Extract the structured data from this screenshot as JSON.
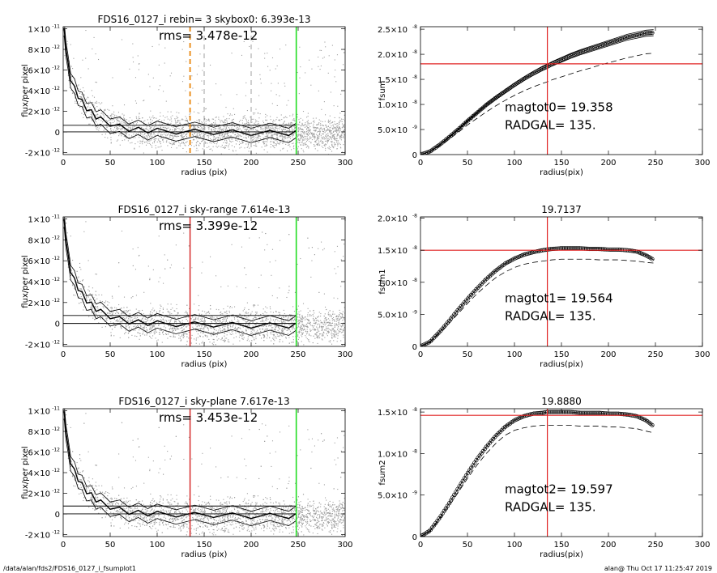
{
  "footer": {
    "left": "/data/alan/fds2/FDS16_0127_i_fsumplot1",
    "right": "alan@  Thu Oct 17 11:25:47 2019"
  },
  "colors": {
    "scatter": "#9e9e9e",
    "profile": "#000000",
    "radgal_line_top": "#e8870e",
    "radgal_line": "#d42020",
    "edge_line": "#22dd22",
    "mag_line": "#e02020"
  },
  "chart_data": [
    {
      "id": "left1",
      "type": "scatter",
      "title": "FDS16_0127_i rebin= 3    skybox0:  6.393e-13",
      "rms_label": "rms= 3.478e-12",
      "xlabel": "radius (pix)",
      "ylabel": "flux/per pixel",
      "xlim": [
        0,
        300
      ],
      "ylim": [
        -2.2e-12,
        1.02e-11
      ],
      "xticks": [
        0,
        50,
        100,
        150,
        200,
        250,
        300
      ],
      "xticklabels": [
        "0",
        "50",
        "100",
        "150",
        "200",
        "250",
        "300"
      ],
      "yticks": [
        -2e-12,
        0,
        2e-12,
        4e-12,
        6e-12,
        8e-12,
        1e-11
      ],
      "yticklabels": [
        "-2×10",
        "0",
        "2×10",
        "4×10",
        "6×10",
        "8×10",
        "1×10"
      ],
      "ytickexp": [
        "-12",
        "",
        "-12",
        "-12",
        "-12",
        "-12",
        "-11"
      ],
      "profile_radius": [
        1,
        3,
        5,
        8,
        12,
        16,
        20,
        25,
        30,
        35,
        40,
        50,
        60,
        70,
        80,
        90,
        100,
        120,
        140,
        160,
        180,
        200,
        220,
        240,
        248
      ],
      "profile_flux": [
        9.8e-12,
        8.2e-12,
        6.6e-12,
        5.2e-12,
        4.2e-12,
        3.5e-12,
        2.9e-12,
        2.3e-12,
        1.9e-12,
        1.5e-12,
        1.2e-12,
        8e-13,
        5e-13,
        3e-13,
        2e-13,
        1.5e-13,
        1e-13,
        5e-14,
        0,
        0,
        -5e-14,
        -1e-13,
        -1e-13,
        -1e-13,
        -1e-13
      ],
      "profile_band": 7e-13,
      "hlines": [
        6.393e-13,
        0
      ],
      "radgal_line": {
        "x": 135,
        "style": "dashed",
        "color": "#e8870e"
      },
      "extra_dashed": [
        150,
        200
      ],
      "edge_line": 248
    },
    {
      "id": "right1",
      "type": "line",
      "title": "",
      "xlabel": "radius(pix)",
      "ylabel": "fsum",
      "xlim": [
        0,
        300
      ],
      "ylim": [
        0,
        2.55e-08
      ],
      "xticks": [
        0,
        50,
        100,
        150,
        200,
        250,
        300
      ],
      "xticklabels": [
        "0",
        "50",
        "100",
        "150",
        "200",
        "250",
        "300"
      ],
      "yticks": [
        0,
        5e-09,
        1e-08,
        1.5e-08,
        2e-08,
        2.5e-08
      ],
      "yticklabels": [
        "0",
        "5.0×10",
        "1.0×10",
        "1.5×10",
        "2.0×10",
        "2.5×10"
      ],
      "ytickexp": [
        "",
        "-9",
        "-8",
        "-8",
        "-8",
        "-8"
      ],
      "curve_radius": [
        0,
        10,
        20,
        30,
        40,
        50,
        60,
        70,
        80,
        90,
        100,
        110,
        120,
        130,
        135,
        140,
        150,
        160,
        170,
        180,
        190,
        200,
        210,
        220,
        230,
        240,
        248
      ],
      "curve_fsum": [
        0,
        6e-10,
        1.9e-09,
        3.4e-09,
        5e-09,
        6.7e-09,
        8.3e-09,
        9.9e-09,
        1.13e-08,
        1.26e-08,
        1.39e-08,
        1.51e-08,
        1.62e-08,
        1.72e-08,
        1.76e-08,
        1.81e-08,
        1.89e-08,
        1.97e-08,
        2.04e-08,
        2.1e-08,
        2.16e-08,
        2.22e-08,
        2.28e-08,
        2.34e-08,
        2.38e-08,
        2.42e-08,
        2.43e-08
      ],
      "band_frac": 0.025,
      "dashed_fsum": [
        0,
        5.5e-10,
        1.7e-09,
        3e-09,
        4.4e-09,
        5.9e-09,
        7.2e-09,
        8.5e-09,
        9.7e-09,
        1.08e-08,
        1.18e-08,
        1.27e-08,
        1.35e-08,
        1.42e-08,
        1.45e-08,
        1.49e-08,
        1.55e-08,
        1.61e-08,
        1.67e-08,
        1.72e-08,
        1.78e-08,
        1.83e-08,
        1.88e-08,
        1.93e-08,
        1.97e-08,
        2.01e-08,
        2.02e-08
      ],
      "hline": 1.81e-08,
      "vline": 135,
      "label_mag": "magtot0=  19.358",
      "label_radgal": "RADGAL=    135."
    },
    {
      "id": "left2",
      "type": "scatter",
      "title": "FDS16_0127_i sky-range  7.614e-13",
      "rms_label": "rms= 3.399e-12",
      "xlabel": "radius (pix)",
      "ylabel": "flux/per pixel",
      "xlim": [
        0,
        300
      ],
      "ylim": [
        -2.2e-12,
        1.02e-11
      ],
      "xticks": [
        0,
        50,
        100,
        150,
        200,
        250,
        300
      ],
      "xticklabels": [
        "0",
        "50",
        "100",
        "150",
        "200",
        "250",
        "300"
      ],
      "yticks": [
        -2e-12,
        0,
        2e-12,
        4e-12,
        6e-12,
        8e-12,
        1e-11
      ],
      "yticklabels": [
        "-2×10",
        "0",
        "2×10",
        "4×10",
        "6×10",
        "8×10",
        "1×10"
      ],
      "ytickexp": [
        "-12",
        "",
        "-12",
        "-12",
        "-12",
        "-12",
        "-11"
      ],
      "profile_radius": [
        1,
        3,
        5,
        8,
        12,
        16,
        20,
        25,
        30,
        35,
        40,
        50,
        60,
        70,
        80,
        90,
        100,
        120,
        140,
        160,
        180,
        200,
        220,
        240,
        248
      ],
      "profile_flux": [
        9.7e-12,
        8.1e-12,
        6.5e-12,
        5.1e-12,
        4.1e-12,
        3.4e-12,
        2.8e-12,
        2.2e-12,
        1.8e-12,
        1.4e-12,
        1.1e-12,
        7e-13,
        4e-13,
        2e-13,
        1e-13,
        5e-14,
        0,
        -5e-14,
        -1e-13,
        -1e-13,
        -1.5e-13,
        -2e-13,
        -2e-13,
        -2e-13,
        -2e-13
      ],
      "profile_band": 7e-13,
      "hlines": [
        7.614e-13,
        0
      ],
      "radgal_line": {
        "x": 135,
        "style": "solid",
        "color": "#d42020"
      },
      "extra_dashed": [],
      "edge_line": 248
    },
    {
      "id": "right2",
      "type": "line",
      "title": "19.7137",
      "xlabel": "radius(pix)",
      "ylabel": "fsum1",
      "xlim": [
        0,
        300
      ],
      "ylim": [
        0,
        2.02e-08
      ],
      "xticks": [
        0,
        50,
        100,
        150,
        200,
        250,
        300
      ],
      "xticklabels": [
        "0",
        "50",
        "100",
        "150",
        "200",
        "250",
        "300"
      ],
      "yticks": [
        0,
        5e-09,
        1e-08,
        1.5e-08,
        2e-08
      ],
      "yticklabels": [
        "0",
        "5.0×10",
        "1.0×10",
        "1.5×10",
        "2.0×10"
      ],
      "ytickexp": [
        "",
        "-9",
        "-8",
        "-8",
        "-8"
      ],
      "curve_radius": [
        0,
        10,
        20,
        30,
        40,
        50,
        60,
        70,
        80,
        90,
        100,
        110,
        120,
        130,
        135,
        140,
        150,
        160,
        170,
        180,
        190,
        200,
        210,
        220,
        230,
        240,
        248
      ],
      "curve_fsum": [
        0,
        7e-10,
        2.2e-09,
        3.9e-09,
        5.7e-09,
        7.4e-09,
        9e-09,
        1.05e-08,
        1.18e-08,
        1.29e-08,
        1.37e-08,
        1.43e-08,
        1.47e-08,
        1.5e-08,
        1.51e-08,
        1.52e-08,
        1.53e-08,
        1.53e-08,
        1.53e-08,
        1.52e-08,
        1.52e-08,
        1.51e-08,
        1.51e-08,
        1.5e-08,
        1.48e-08,
        1.42e-08,
        1.35e-08
      ],
      "band_frac": 0.0,
      "dashed_fsum": [
        0,
        6e-10,
        2e-09,
        3.5e-09,
        5.1e-09,
        6.7e-09,
        8.2e-09,
        9.5e-09,
        1.07e-08,
        1.16e-08,
        1.23e-08,
        1.28e-08,
        1.31e-08,
        1.33e-08,
        1.34e-08,
        1.35e-08,
        1.36e-08,
        1.36e-08,
        1.36e-08,
        1.36e-08,
        1.35e-08,
        1.35e-08,
        1.35e-08,
        1.34e-08,
        1.33e-08,
        1.31e-08,
        1.3e-08
      ],
      "hline": 1.5e-08,
      "vline": 135,
      "label_mag": "magtot1=  19.564",
      "label_radgal": "RADGAL=    135."
    },
    {
      "id": "left3",
      "type": "scatter",
      "title": "FDS16_0127_i sky-plane  7.617e-13",
      "rms_label": "rms= 3.453e-12",
      "xlabel": "radius (pix)",
      "ylabel": "flux/per pixel",
      "xlim": [
        0,
        300
      ],
      "ylim": [
        -2.2e-12,
        1.02e-11
      ],
      "xticks": [
        0,
        50,
        100,
        150,
        200,
        250,
        300
      ],
      "xticklabels": [
        "0",
        "50",
        "100",
        "150",
        "200",
        "250",
        "300"
      ],
      "yticks": [
        -2e-12,
        0,
        2e-12,
        4e-12,
        6e-12,
        8e-12,
        1e-11
      ],
      "yticklabels": [
        "-2×10",
        "0",
        "2×10",
        "4×10",
        "6×10",
        "8×10",
        "1×10"
      ],
      "ytickexp": [
        "-12",
        "",
        "-12",
        "-12",
        "-12",
        "-12",
        "-11"
      ],
      "profile_radius": [
        1,
        3,
        5,
        8,
        12,
        16,
        20,
        25,
        30,
        35,
        40,
        50,
        60,
        70,
        80,
        90,
        100,
        120,
        140,
        160,
        180,
        200,
        220,
        240,
        248
      ],
      "profile_flux": [
        9.7e-12,
        8.1e-12,
        6.5e-12,
        5.1e-12,
        4.1e-12,
        3.4e-12,
        2.8e-12,
        2.2e-12,
        1.8e-12,
        1.4e-12,
        1.1e-12,
        7e-13,
        4e-13,
        2e-13,
        1e-13,
        5e-14,
        0,
        -5e-14,
        -1e-13,
        -1e-13,
        -1.5e-13,
        -2e-13,
        -2e-13,
        -2e-13,
        -2e-13
      ],
      "profile_band": 7e-13,
      "hlines": [
        7.617e-13,
        0
      ],
      "radgal_line": {
        "x": 135,
        "style": "solid",
        "color": "#d42020"
      },
      "extra_dashed": [],
      "edge_line": 248
    },
    {
      "id": "right3",
      "type": "line",
      "title": "19.8880",
      "xlabel": "radius(pix)",
      "ylabel": "fsum2",
      "xlim": [
        0,
        300
      ],
      "ylim": [
        0,
        1.54e-08
      ],
      "xticks": [
        0,
        50,
        100,
        150,
        200,
        250,
        300
      ],
      "xticklabels": [
        "0",
        "50",
        "100",
        "150",
        "200",
        "250",
        "300"
      ],
      "yticks": [
        0,
        5e-09,
        1e-08,
        1.5e-08
      ],
      "yticklabels": [
        "0",
        "5.0×10",
        "1.0×10",
        "1.5×10"
      ],
      "ytickexp": [
        "",
        "-9",
        "-8",
        "-8"
      ],
      "curve_radius": [
        0,
        10,
        20,
        30,
        40,
        50,
        60,
        70,
        80,
        90,
        100,
        110,
        120,
        130,
        135,
        140,
        150,
        160,
        170,
        180,
        190,
        200,
        210,
        220,
        230,
        240,
        248
      ],
      "curve_fsum": [
        0,
        7e-10,
        2.2e-09,
        3.9e-09,
        5.8e-09,
        7.6e-09,
        9.3e-09,
        1.08e-08,
        1.21e-08,
        1.32e-08,
        1.4e-08,
        1.45e-08,
        1.48e-08,
        1.49e-08,
        1.5e-08,
        1.5e-08,
        1.5e-08,
        1.5e-08,
        1.49e-08,
        1.49e-08,
        1.49e-08,
        1.48e-08,
        1.48e-08,
        1.47e-08,
        1.45e-08,
        1.4e-08,
        1.33e-08
      ],
      "band_frac": 0.0,
      "dashed_fsum": [
        0,
        6e-10,
        2e-09,
        3.6e-09,
        5.3e-09,
        7e-09,
        8.6e-09,
        1e-08,
        1.12e-08,
        1.22e-08,
        1.28e-08,
        1.31e-08,
        1.33e-08,
        1.34e-08,
        1.34e-08,
        1.34e-08,
        1.34e-08,
        1.34e-08,
        1.33e-08,
        1.33e-08,
        1.33e-08,
        1.32e-08,
        1.32e-08,
        1.31e-08,
        1.3e-08,
        1.27e-08,
        1.25e-08
      ],
      "hline": 1.46e-08,
      "vline": 135,
      "label_mag": "magtot2=  19.597",
      "label_radgal": "RADGAL=    135."
    }
  ]
}
